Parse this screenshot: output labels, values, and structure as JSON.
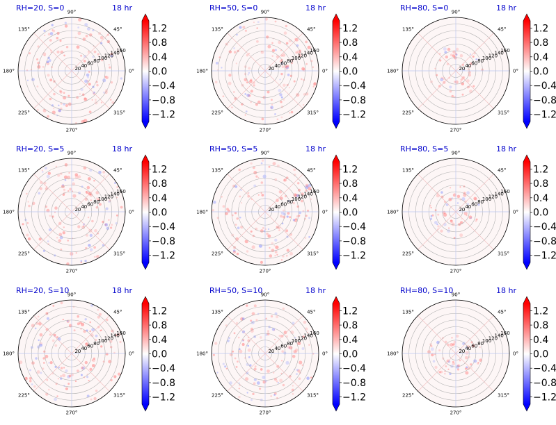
{
  "figure": {
    "time_label": "18 hr",
    "title_color": "#0000cc",
    "colormap": {
      "name": "bwr",
      "low": "#0000ff",
      "mid": "#ffffff",
      "high": "#ff0000"
    }
  },
  "chart_data": [
    {
      "type": "heatmap",
      "projection": "polar",
      "title": "RH=20, S=0",
      "time_label": "18 hr",
      "theta_ticks": [
        "0°",
        "45°",
        "90°",
        "135°",
        "180°",
        "225°",
        "270°",
        "315°"
      ],
      "r_ticks": [
        "20",
        "40",
        "60",
        "80",
        "100",
        "120",
        "140",
        "160"
      ],
      "rlim": [
        0,
        160
      ],
      "colorbar": {
        "ticks": [
          "1.2",
          "0.8",
          "0.4",
          "0.0",
          "−0.4",
          "−0.8",
          "−1.2"
        ],
        "range": [
          -1.4,
          1.4
        ],
        "extend": "both"
      }
    },
    {
      "type": "heatmap",
      "projection": "polar",
      "title": "RH=50, S=0",
      "time_label": "18 hr",
      "theta_ticks": [
        "0°",
        "45°",
        "90°",
        "135°",
        "180°",
        "225°",
        "270°",
        "315°"
      ],
      "r_ticks": [
        "20",
        "40",
        "60",
        "80",
        "100",
        "120",
        "140",
        "160"
      ],
      "rlim": [
        0,
        160
      ],
      "colorbar": {
        "ticks": [
          "1.2",
          "0.8",
          "0.4",
          "0.0",
          "−0.4",
          "−0.8",
          "−1.2"
        ],
        "range": [
          -1.4,
          1.4
        ],
        "extend": "both"
      }
    },
    {
      "type": "heatmap",
      "projection": "polar",
      "title": "RH=80, S=0",
      "time_label": "18 hr",
      "theta_ticks": [
        "0°",
        "45°",
        "90°",
        "135°",
        "180°",
        "225°",
        "270°",
        "315°"
      ],
      "r_ticks": [
        "20",
        "40",
        "60",
        "80",
        "100",
        "120",
        "140",
        "160"
      ],
      "rlim": [
        0,
        160
      ],
      "colorbar": {
        "ticks": [
          "1.2",
          "0.8",
          "0.4",
          "0.0",
          "−0.4",
          "−0.8",
          "−1.2"
        ],
        "range": [
          -1.4,
          1.4
        ],
        "extend": "both"
      }
    },
    {
      "type": "heatmap",
      "projection": "polar",
      "title": "RH=20, S=5",
      "time_label": "18 hr",
      "theta_ticks": [
        "0°",
        "45°",
        "90°",
        "135°",
        "180°",
        "225°",
        "270°",
        "315°"
      ],
      "r_ticks": [
        "20",
        "40",
        "60",
        "80",
        "100",
        "120",
        "140",
        "160"
      ],
      "rlim": [
        0,
        160
      ],
      "colorbar": {
        "ticks": [
          "1.2",
          "0.8",
          "0.4",
          "0.0",
          "−0.4",
          "−0.8",
          "−1.2"
        ],
        "range": [
          -1.4,
          1.4
        ],
        "extend": "both"
      }
    },
    {
      "type": "heatmap",
      "projection": "polar",
      "title": "RH=50, S=5",
      "time_label": "18 hr",
      "theta_ticks": [
        "0°",
        "45°",
        "90°",
        "135°",
        "180°",
        "225°",
        "270°",
        "315°"
      ],
      "r_ticks": [
        "20",
        "40",
        "60",
        "80",
        "100",
        "120",
        "140",
        "160"
      ],
      "rlim": [
        0,
        160
      ],
      "colorbar": {
        "ticks": [
          "1.2",
          "0.8",
          "0.4",
          "0.0",
          "−0.4",
          "−0.8",
          "−1.2"
        ],
        "range": [
          -1.4,
          1.4
        ],
        "extend": "both"
      }
    },
    {
      "type": "heatmap",
      "projection": "polar",
      "title": "RH=80, S=5",
      "time_label": "18 hr",
      "theta_ticks": [
        "0°",
        "45°",
        "90°",
        "135°",
        "180°",
        "225°",
        "270°",
        "315°"
      ],
      "r_ticks": [
        "20",
        "40",
        "60",
        "80",
        "100",
        "120",
        "140",
        "160"
      ],
      "rlim": [
        0,
        160
      ],
      "colorbar": {
        "ticks": [
          "1.2",
          "0.8",
          "0.4",
          "0.0",
          "−0.4",
          "−0.8",
          "−1.2"
        ],
        "range": [
          -1.4,
          1.4
        ],
        "extend": "both"
      }
    },
    {
      "type": "heatmap",
      "projection": "polar",
      "title": "RH=20, S=10",
      "time_label": "18 hr",
      "theta_ticks": [
        "0°",
        "45°",
        "90°",
        "135°",
        "180°",
        "225°",
        "270°",
        "315°"
      ],
      "r_ticks": [
        "20",
        "40",
        "60",
        "80",
        "100",
        "120",
        "140",
        "160"
      ],
      "rlim": [
        0,
        160
      ],
      "colorbar": {
        "ticks": [
          "1.2",
          "0.8",
          "0.4",
          "0.0",
          "−0.4",
          "−0.8",
          "−1.2"
        ],
        "range": [
          -1.4,
          1.4
        ],
        "extend": "both"
      }
    },
    {
      "type": "heatmap",
      "projection": "polar",
      "title": "RH=50, S=10",
      "time_label": "18 hr",
      "theta_ticks": [
        "0°",
        "45°",
        "90°",
        "135°",
        "180°",
        "225°",
        "270°",
        "315°"
      ],
      "r_ticks": [
        "20",
        "40",
        "60",
        "80",
        "100",
        "120",
        "140",
        "160"
      ],
      "rlim": [
        0,
        160
      ],
      "colorbar": {
        "ticks": [
          "1.2",
          "0.8",
          "0.4",
          "0.0",
          "−0.4",
          "−0.8",
          "−1.2"
        ],
        "range": [
          -1.4,
          1.4
        ],
        "extend": "both"
      }
    },
    {
      "type": "heatmap",
      "projection": "polar",
      "title": "RH=80, S=10",
      "time_label": "18 hr",
      "theta_ticks": [
        "0°",
        "45°",
        "90°",
        "135°",
        "180°",
        "225°",
        "270°",
        "315°"
      ],
      "r_ticks": [
        "20",
        "40",
        "60",
        "80",
        "100",
        "120",
        "140",
        "160"
      ],
      "rlim": [
        0,
        160
      ],
      "colorbar": {
        "ticks": [
          "1.2",
          "0.8",
          "0.4",
          "0.0",
          "−0.4",
          "−0.8",
          "−1.2"
        ],
        "range": [
          -1.4,
          1.4
        ],
        "extend": "both"
      }
    }
  ]
}
